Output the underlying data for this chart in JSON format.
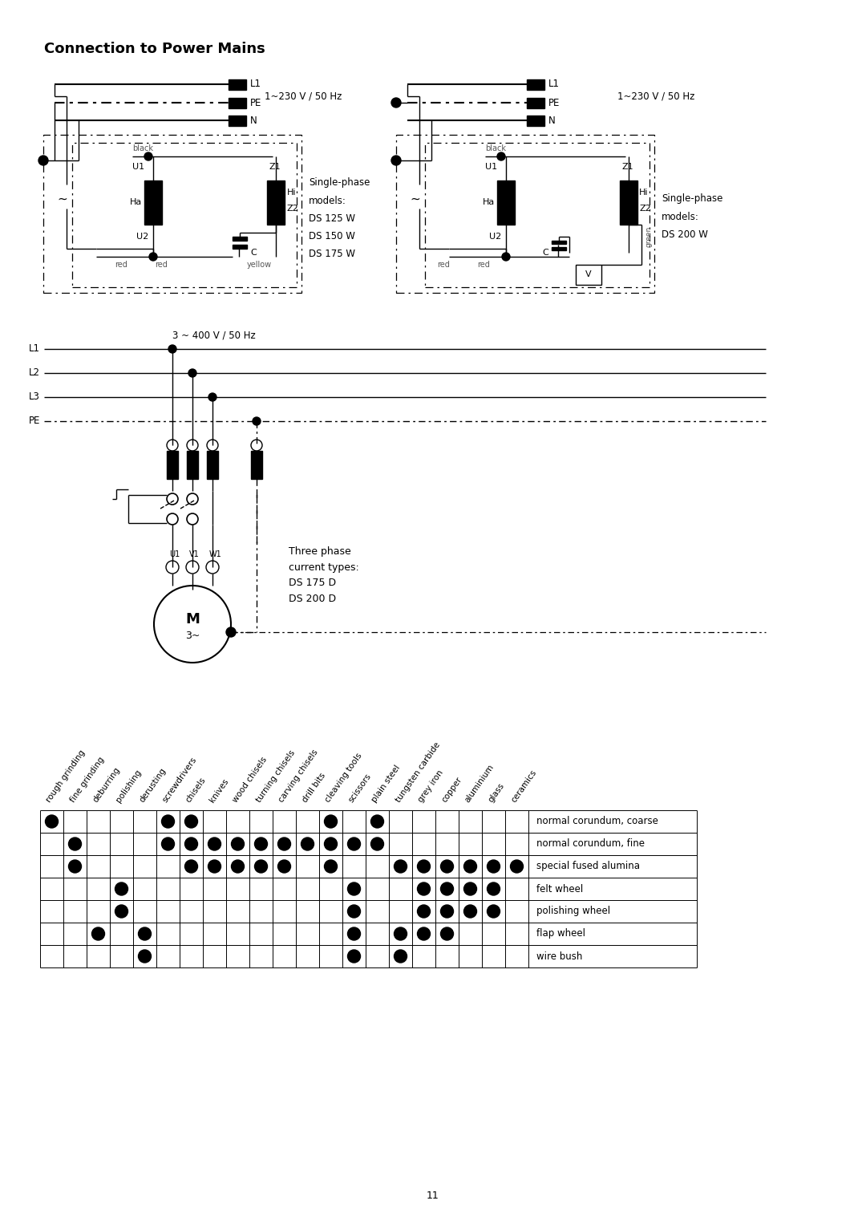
{
  "title": "Connection to Power Mains",
  "page_number": "11",
  "background_color": "#ffffff",
  "col_labels": [
    "rough grinding",
    "fine grinding",
    "deburring",
    "polishing",
    "derusting",
    "screwdrivers",
    "chisels",
    "knives",
    "wood chisels",
    "turning chisels",
    "carving chisels",
    "drill bits",
    "cleaving tools",
    "scissors",
    "plain steel",
    "tungsten carbide",
    "grey iron",
    "copper",
    "aluminium",
    "glass",
    "ceramics"
  ],
  "row_labels": [
    "normal corundum, coarse",
    "normal corundum, fine",
    "special fused alumina",
    "felt wheel",
    "polishing wheel",
    "flap wheel",
    "wire bush"
  ],
  "dots": [
    [
      1,
      0,
      0,
      0,
      0,
      1,
      1,
      0,
      0,
      0,
      0,
      0,
      1,
      0,
      1,
      0,
      0,
      0,
      0,
      0,
      0
    ],
    [
      0,
      1,
      0,
      0,
      0,
      1,
      1,
      1,
      1,
      1,
      1,
      1,
      1,
      1,
      1,
      0,
      0,
      0,
      0,
      0,
      0
    ],
    [
      0,
      1,
      0,
      0,
      0,
      0,
      1,
      1,
      1,
      1,
      1,
      0,
      1,
      0,
      0,
      1,
      1,
      1,
      1,
      1,
      1
    ],
    [
      0,
      0,
      0,
      1,
      0,
      0,
      0,
      0,
      0,
      0,
      0,
      0,
      0,
      1,
      0,
      0,
      1,
      1,
      1,
      1,
      0
    ],
    [
      0,
      0,
      0,
      1,
      0,
      0,
      0,
      0,
      0,
      0,
      0,
      0,
      0,
      1,
      0,
      0,
      1,
      1,
      1,
      1,
      0
    ],
    [
      0,
      0,
      1,
      0,
      1,
      0,
      0,
      0,
      0,
      0,
      0,
      0,
      0,
      1,
      0,
      1,
      1,
      1,
      0,
      0,
      0
    ],
    [
      0,
      0,
      0,
      0,
      1,
      0,
      0,
      0,
      0,
      0,
      0,
      0,
      0,
      1,
      0,
      1,
      0,
      0,
      0,
      0,
      0
    ]
  ],
  "diag1_label": "1~230 V / 50 Hz",
  "diag2_label": "1~230 V / 50 Hz",
  "diag3_label": "3 ~ 400 V / 50 Hz",
  "diag1_models": [
    "Single-phase",
    "models:",
    "DS 125 W",
    "DS 150 W",
    "DS 175 W"
  ],
  "diag2_models": [
    "Single-phase",
    "models:",
    "DS 200 W"
  ],
  "diag3_models": [
    "Three phase",
    "current types:",
    "DS 175 D",
    "DS 200 D"
  ]
}
